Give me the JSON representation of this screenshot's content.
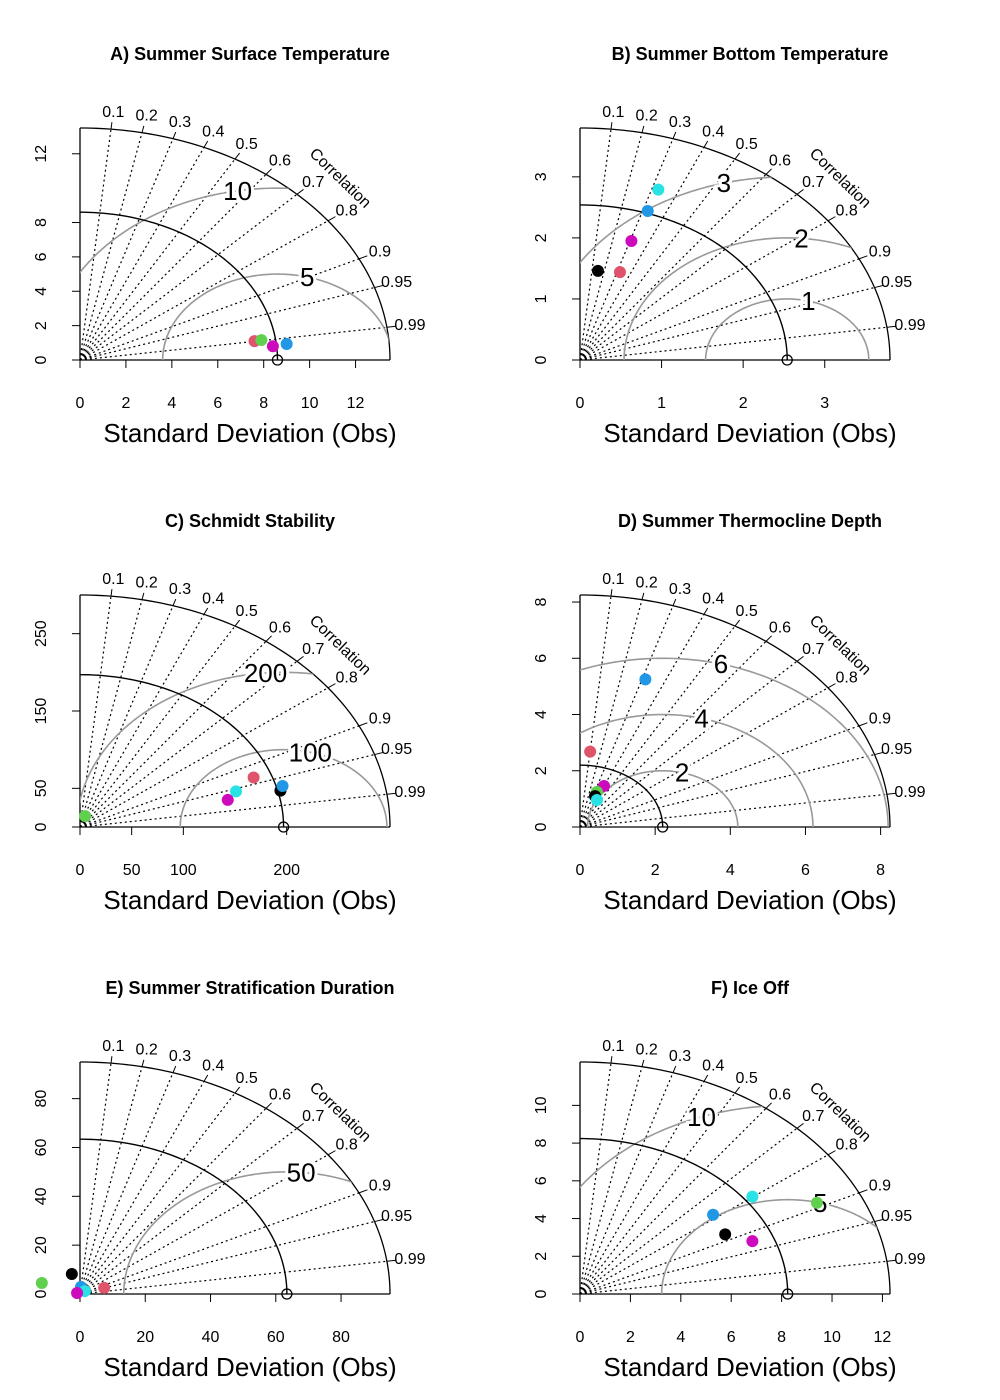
{
  "chart_data": [
    {
      "type": "taylor",
      "title": "A) Summer Surface Temperature",
      "xlabel": "Standard Deviation (Obs)",
      "corr_label": "Correlation",
      "xlim": [
        0,
        13.5
      ],
      "ylim": [
        0,
        13.5
      ],
      "xticks": [
        0,
        2,
        4,
        6,
        8,
        10,
        12
      ],
      "yticks": [
        0,
        2,
        4,
        6,
        8,
        12
      ],
      "corr_ticks": [
        0.1,
        0.2,
        0.3,
        0.4,
        0.5,
        0.6,
        0.7,
        0.8,
        0.9,
        0.95,
        0.99
      ],
      "obs_sd": 8.6,
      "rmsd_contours": [
        5,
        10
      ],
      "points": {
        "x": [
          7.6,
          7.9,
          9.0,
          8.4
        ],
        "y": [
          1.1,
          1.16,
          0.93,
          0.8
        ],
        "colors": [
          "#DF536B",
          "#61D04F",
          "#2297E6",
          "#CD0BBC"
        ]
      }
    },
    {
      "type": "taylor",
      "title": "B) Summer Bottom Temperature",
      "xlabel": "Standard Deviation (Obs)",
      "corr_label": "Correlation",
      "xlim": [
        0,
        3.8
      ],
      "ylim": [
        0,
        3.8
      ],
      "xticks": [
        0,
        1,
        2,
        3
      ],
      "yticks": [
        0,
        1,
        2,
        3
      ],
      "corr_ticks": [
        0.1,
        0.2,
        0.3,
        0.4,
        0.5,
        0.6,
        0.7,
        0.8,
        0.9,
        0.95,
        0.99
      ],
      "obs_sd": 2.54,
      "rmsd_contours": [
        1,
        2,
        3
      ],
      "points": {
        "x": [
          0.22,
          0.49,
          0.63,
          0.83,
          0.96
        ],
        "y": [
          1.46,
          1.44,
          1.95,
          2.44,
          2.79
        ],
        "colors": [
          "#000000",
          "#DF536B",
          "#CD0BBC",
          "#2297E6",
          "#28E2E5"
        ]
      }
    },
    {
      "type": "taylor",
      "title": "C) Schmidt Stability",
      "xlabel": "Standard Deviation (Obs)",
      "corr_label": "Correlation",
      "xlim": [
        0,
        300
      ],
      "ylim": [
        0,
        300
      ],
      "xticks": [
        0,
        50,
        100,
        200
      ],
      "yticks": [
        0,
        50,
        150,
        250
      ],
      "corr_ticks": [
        0.1,
        0.2,
        0.3,
        0.4,
        0.5,
        0.6,
        0.7,
        0.8,
        0.9,
        0.95,
        0.99
      ],
      "obs_sd": 197,
      "rmsd_contours": [
        100,
        200
      ],
      "points": {
        "x": [
          5,
          194,
          196,
          168,
          151,
          143
        ],
        "y": [
          14,
          47,
          53,
          64,
          46,
          35
        ],
        "colors": [
          "#61D04F",
          "#000000",
          "#2297E6",
          "#DF536B",
          "#28E2E5",
          "#CD0BBC"
        ]
      }
    },
    {
      "type": "taylor",
      "title": "D) Summer Thermocline Depth",
      "xlabel": "Standard Deviation (Obs)",
      "corr_label": "Correlation",
      "xlim": [
        0,
        8.25
      ],
      "ylim": [
        0,
        8.25
      ],
      "xticks": [
        0,
        2,
        4,
        6,
        8
      ],
      "yticks": [
        0,
        2,
        4,
        6,
        8
      ],
      "corr_ticks": [
        0.1,
        0.2,
        0.3,
        0.4,
        0.5,
        0.6,
        0.7,
        0.8,
        0.9,
        0.95,
        0.99
      ],
      "obs_sd": 2.2,
      "rmsd_contours": [
        2,
        4,
        6
      ],
      "points": {
        "x": [
          0.27,
          1.74,
          0.64,
          0.45,
          0.4,
          0.45
        ],
        "y": [
          2.68,
          5.25,
          1.46,
          1.25,
          1.1,
          0.96
        ],
        "colors": [
          "#DF536B",
          "#2297E6",
          "#CD0BBC",
          "#61D04F",
          "#000000",
          "#28E2E5"
        ]
      }
    },
    {
      "type": "taylor",
      "title": "E) Summer Stratification Duration",
      "xlabel": "Standard Deviation (Obs)",
      "corr_label": "Correlation",
      "xlim": [
        0,
        95
      ],
      "ylim": [
        0,
        95
      ],
      "xticks": [
        0,
        20,
        40,
        60,
        80
      ],
      "yticks": [
        0,
        20,
        40,
        60,
        80
      ],
      "corr_ticks": [
        0.1,
        0.2,
        0.3,
        0.4,
        0.5,
        0.6,
        0.7,
        0.8,
        0.9,
        0.95,
        0.99
      ],
      "obs_sd": 63.4,
      "rmsd_contours": [
        50
      ],
      "points": {
        "x": [
          -11.7,
          -2.5,
          0.3,
          7.4,
          1.5,
          -0.9
        ],
        "y": [
          4.5,
          8.2,
          2.9,
          2.5,
          1.2,
          0.4
        ],
        "colors": [
          "#61D04F",
          "#000000",
          "#2297E6",
          "#DF536B",
          "#28E2E5",
          "#CD0BBC"
        ]
      }
    },
    {
      "type": "taylor",
      "title": "F) Ice Off",
      "xlabel": "Standard Deviation (Obs)",
      "corr_label": "Correlation",
      "xlim": [
        0,
        12.3
      ],
      "ylim": [
        0,
        12.3
      ],
      "xticks": [
        0,
        2,
        4,
        6,
        8,
        10,
        12
      ],
      "yticks": [
        0,
        2,
        4,
        6,
        8,
        10
      ],
      "corr_ticks": [
        0.1,
        0.2,
        0.3,
        0.4,
        0.5,
        0.6,
        0.7,
        0.8,
        0.9,
        0.95,
        0.99
      ],
      "obs_sd": 8.24,
      "rmsd_contours": [
        5,
        10
      ],
      "points": {
        "x": [
          5.76,
          5.28,
          6.84,
          6.84,
          9.4
        ],
        "y": [
          3.16,
          4.2,
          5.16,
          2.8,
          4.84
        ],
        "colors": [
          "#000000",
          "#2297E6",
          "#28E2E5",
          "#CD0BBC",
          "#61D04F"
        ]
      }
    }
  ]
}
